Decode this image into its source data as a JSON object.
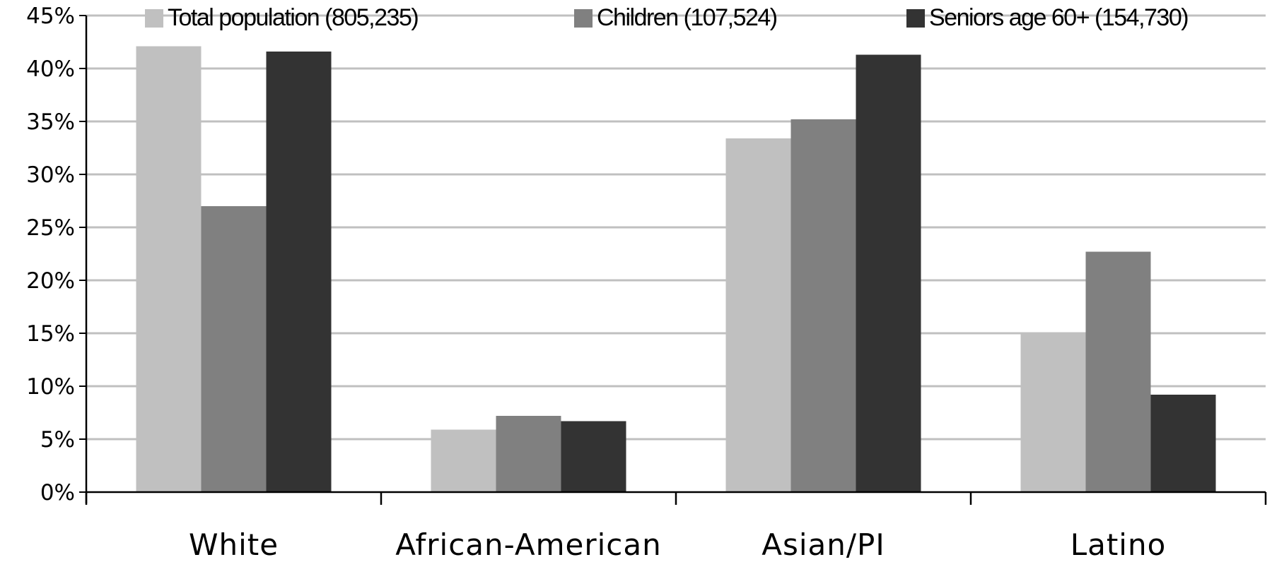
{
  "chart_data": {
    "type": "bar",
    "categories": [
      "White",
      "African-American",
      "Asian/PI",
      "Latino"
    ],
    "series": [
      {
        "name": "Total population (805,235)",
        "color": "#c0c0c0",
        "values": [
          42.1,
          5.9,
          33.4,
          15.1
        ]
      },
      {
        "name": "Children (107,524)",
        "color": "#808080",
        "values": [
          27.0,
          7.2,
          35.2,
          22.7
        ]
      },
      {
        "name": "Seniors age 60+ (154,730)",
        "color": "#333333",
        "values": [
          41.6,
          6.7,
          41.3,
          9.2
        ]
      }
    ],
    "ylim": [
      0,
      45
    ],
    "yticks": [
      "0%",
      "5%",
      "10%",
      "15%",
      "20%",
      "25%",
      "30%",
      "35%",
      "40%",
      "45%"
    ],
    "grid": true,
    "legend_position": "top"
  }
}
